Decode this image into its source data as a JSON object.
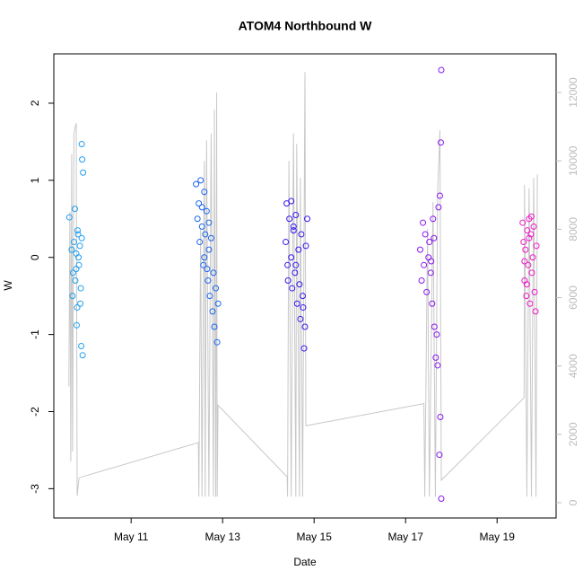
{
  "chart_data": {
    "type": "scatter",
    "title": "ATOM4 Northbound W",
    "x_label": "Date",
    "y_label": "W",
    "xlim": [
      9.31,
      20.29
    ],
    "ylim": [
      -3.38,
      2.64
    ],
    "y2lim": [
      -446,
      13130
    ],
    "xticks": [
      {
        "value": 11,
        "label": "May 11"
      },
      {
        "value": 13,
        "label": "May 13"
      },
      {
        "value": 15,
        "label": "May 15"
      },
      {
        "value": 17,
        "label": "May 17"
      },
      {
        "value": 19,
        "label": "May 19"
      }
    ],
    "yticks": [
      -3,
      -2,
      -1,
      0,
      1,
      2
    ],
    "y2ticks": [
      0,
      2000,
      4000,
      6000,
      8000,
      10000,
      12000
    ],
    "series": [
      {
        "type": "line",
        "axis": "y2",
        "color": "#c8c8c8",
        "x": [
          9.64,
          9.66,
          9.68,
          9.7,
          9.72,
          9.75,
          9.78,
          9.8,
          9.82,
          9.86,
          12.47,
          12.48,
          12.52,
          12.55,
          12.6,
          12.62,
          12.65,
          12.7,
          12.75,
          12.8,
          12.82,
          12.85,
          12.87,
          12.88,
          12.9,
          14.41,
          14.42,
          14.45,
          14.5,
          14.55,
          14.6,
          14.62,
          14.68,
          14.7,
          14.75,
          14.8,
          14.82,
          17.4,
          17.42,
          17.48,
          17.52,
          17.6,
          17.65,
          17.7,
          17.75,
          17.78,
          19.59,
          19.6,
          19.65,
          19.7,
          19.75,
          19.8,
          19.85,
          19.88
        ],
        "values": [
          3400,
          8500,
          1200,
          10200,
          1500,
          10800,
          11000,
          11100,
          200,
          730,
          1760,
          180,
          8000,
          180,
          10000,
          180,
          10600,
          180,
          10800,
          180,
          11500,
          180,
          12000,
          180,
          2850,
          760,
          180,
          10000,
          180,
          10800,
          180,
          10500,
          180,
          9500,
          180,
          12600,
          2250,
          2900,
          180,
          8000,
          180,
          8800,
          180,
          9000,
          10900,
          660,
          3070,
          9300,
          180,
          9200,
          180,
          9500,
          180,
          9600
        ]
      },
      {
        "color": "#1e9ff0",
        "x": [
          9.65,
          9.7,
          9.72,
          9.75,
          9.78,
          9.8,
          9.82,
          9.84,
          9.86,
          9.88,
          9.9,
          9.92,
          9.93,
          9.95,
          9.73,
          9.77,
          9.81,
          9.85,
          9.89,
          9.91,
          9.94,
          9.92,
          9.8,
          9.83
        ],
        "values": [
          0.52,
          0.1,
          -0.5,
          0.2,
          -0.3,
          0.05,
          -0.65,
          0.3,
          -0.1,
          0.15,
          -0.4,
          1.47,
          1.27,
          1.1,
          -0.2,
          0.63,
          -0.88,
          0.0,
          -0.6,
          -1.15,
          -1.27,
          0.25,
          -0.15,
          0.35
        ]
      },
      {
        "color": "#1a66f0",
        "x": [
          12.42,
          12.45,
          12.48,
          12.5,
          12.52,
          12.55,
          12.58,
          12.6,
          12.62,
          12.65,
          12.68,
          12.7,
          12.72,
          12.75,
          12.78,
          12.8,
          12.82,
          12.85,
          12.88,
          12.9,
          12.6,
          12.55,
          12.7,
          12.66
        ],
        "values": [
          0.95,
          0.5,
          0.7,
          0.2,
          1.0,
          0.4,
          -0.1,
          0.85,
          0.3,
          0.6,
          -0.3,
          0.1,
          -0.5,
          0.25,
          -0.7,
          -0.2,
          -0.9,
          -0.4,
          -1.1,
          -0.6,
          0.0,
          0.65,
          0.45,
          -0.15
        ]
      },
      {
        "color": "#3518f0",
        "x": [
          14.38,
          14.4,
          14.43,
          14.46,
          14.5,
          14.52,
          14.55,
          14.58,
          14.6,
          14.63,
          14.66,
          14.7,
          14.72,
          14.75,
          14.78,
          14.8,
          14.82,
          14.85,
          14.5,
          14.6,
          14.68,
          14.42,
          14.55,
          14.76
        ],
        "values": [
          0.2,
          0.7,
          -0.3,
          0.5,
          0.0,
          -0.4,
          0.35,
          -0.2,
          0.55,
          -0.6,
          0.1,
          -0.8,
          0.3,
          -0.5,
          -1.18,
          -0.9,
          0.15,
          0.5,
          0.73,
          -0.1,
          -0.35,
          -0.1,
          0.4,
          -0.65
        ]
      },
      {
        "color": "#8a18f0",
        "x": [
          17.32,
          17.35,
          17.38,
          17.4,
          17.43,
          17.46,
          17.5,
          17.52,
          17.55,
          17.58,
          17.6,
          17.63,
          17.66,
          17.7,
          17.72,
          17.75,
          17.78,
          17.77,
          17.76,
          17.78,
          17.74,
          17.68,
          17.62,
          17.56
        ],
        "values": [
          0.1,
          -0.3,
          0.45,
          -0.1,
          0.3,
          -0.45,
          0.0,
          0.2,
          -0.2,
          -0.6,
          0.5,
          -0.9,
          -1.3,
          -1.4,
          0.65,
          0.8,
          2.43,
          1.49,
          -2.07,
          -3.13,
          -2.56,
          -1.0,
          0.25,
          -0.05
        ]
      },
      {
        "color": "#f018c8",
        "x": [
          19.56,
          19.58,
          19.6,
          19.62,
          19.64,
          19.66,
          19.68,
          19.7,
          19.72,
          19.74,
          19.76,
          19.78,
          19.8,
          19.82,
          19.84,
          19.86,
          19.6,
          19.7,
          19.75,
          19.65
        ],
        "values": [
          0.45,
          0.2,
          -0.3,
          0.1,
          -0.5,
          0.35,
          -0.1,
          0.5,
          -0.6,
          0.3,
          -0.2,
          0.0,
          0.4,
          -0.45,
          -0.7,
          0.15,
          -0.05,
          0.25,
          0.53,
          -0.35
        ]
      }
    ]
  }
}
